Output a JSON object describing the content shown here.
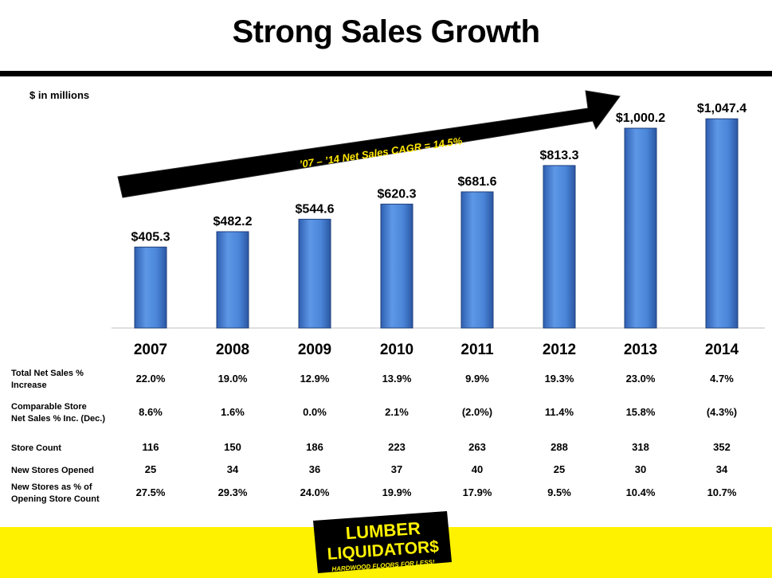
{
  "title": "Strong Sales Growth",
  "units_note": "$ in millions",
  "chart_data": {
    "type": "bar",
    "categories": [
      "2007",
      "2008",
      "2009",
      "2010",
      "2011",
      "2012",
      "2013",
      "2014"
    ],
    "values": [
      405.3,
      482.2,
      544.6,
      620.3,
      681.6,
      813.3,
      1000.2,
      1047.4
    ],
    "value_labels": [
      "$405.3",
      "$482.2",
      "$544.6",
      "$620.3",
      "$681.6",
      "$813.3",
      "$1,000.2",
      "$1,047.4"
    ],
    "ylim": [
      0,
      1100
    ],
    "grid": false,
    "bar_color": "#4f86d9",
    "annotation": "’07 – ’14 Net Sales CAGR = 14.5%",
    "annotation_color": "#ffe600",
    "arrow_color": "#000000"
  },
  "table": {
    "rows": [
      {
        "label_lines": [
          "Total Net Sales %",
          "Increase"
        ],
        "values": [
          "22.0%",
          "19.0%",
          "12.9%",
          "13.9%",
          "9.9%",
          "19.3%",
          "23.0%",
          "4.7%"
        ]
      },
      {
        "label_lines": [
          "Comparable Store",
          "Net Sales % Inc. (Dec.)"
        ],
        "values": [
          "8.6%",
          "1.6%",
          "0.0%",
          "2.1%",
          "(2.0%)",
          "11.4%",
          "15.8%",
          "(4.3%)"
        ]
      },
      {
        "label_lines": [
          "Store Count"
        ],
        "values": [
          "116",
          "150",
          "186",
          "223",
          "263",
          "288",
          "318",
          "352"
        ]
      },
      {
        "label_lines": [
          "New Stores Opened"
        ],
        "values": [
          "25",
          "34",
          "36",
          "37",
          "40",
          "25",
          "30",
          "34"
        ]
      },
      {
        "label_lines": [
          "New Stores as % of",
          "Opening Store Count"
        ],
        "values": [
          "27.5%",
          "29.3%",
          "24.0%",
          "19.9%",
          "17.9%",
          "9.5%",
          "10.4%",
          "10.7%"
        ]
      }
    ]
  },
  "logo": {
    "line1": "LUMBER",
    "line2": "LIQUIDATOR$",
    "tagline": "HARDWOOD FLOORS FOR LESS!",
    "background": "#000000",
    "text_color": "#fff200"
  },
  "footer_color": "#fff200"
}
